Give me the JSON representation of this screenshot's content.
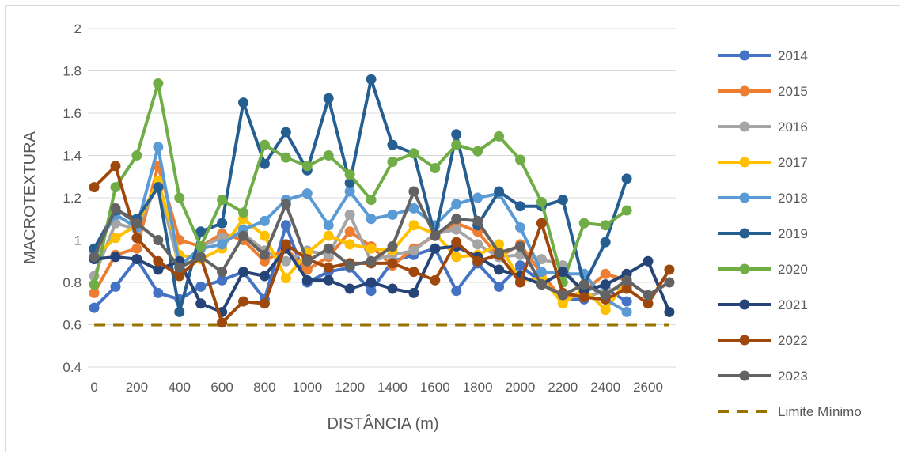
{
  "chart_data": {
    "type": "line",
    "title": "",
    "xlabel": "DISTÂNCIA (m)",
    "ylabel": "MACROTEXTURA",
    "x": [
      0,
      100,
      200,
      300,
      400,
      500,
      600,
      700,
      800,
      900,
      1000,
      1100,
      1200,
      1300,
      1400,
      1500,
      1600,
      1700,
      1800,
      1900,
      2000,
      2100,
      2200,
      2300,
      2400,
      2500,
      2600,
      2700
    ],
    "x_ticks": [
      "0",
      "200",
      "400",
      "600",
      "800",
      "1000",
      "1200",
      "1400",
      "1600",
      "1800",
      "2000",
      "2200",
      "2400",
      "2600"
    ],
    "x_tick_values": [
      0,
      200,
      400,
      600,
      800,
      1000,
      1200,
      1400,
      1600,
      1800,
      2000,
      2200,
      2400,
      2600
    ],
    "xlim": [
      -30,
      2730
    ],
    "y_ticks": [
      "0.4",
      "0.6",
      "0.8",
      "1",
      "1.2",
      "1.4",
      "1.6",
      "1.8",
      "2"
    ],
    "y_tick_values": [
      0.4,
      0.6,
      0.8,
      1,
      1.2,
      1.4,
      1.6,
      1.8,
      2
    ],
    "ylim": [
      0.4,
      2
    ],
    "grid": true,
    "legend_position": "right",
    "series": [
      {
        "name": "2014",
        "color": "#4472C4",
        "values": [
          0.68,
          0.78,
          0.91,
          0.75,
          0.72,
          0.78,
          0.81,
          0.85,
          0.72,
          1.07,
          0.8,
          0.85,
          0.87,
          0.76,
          0.9,
          0.93,
          0.96,
          0.76,
          0.89,
          0.78,
          0.88,
          0.8,
          0.72,
          0.72,
          0.77,
          0.71,
          null,
          null
        ]
      },
      {
        "name": "2015",
        "color": "#ED7D31",
        "values": [
          0.75,
          0.93,
          0.96,
          1.35,
          1.0,
          0.97,
          1.03,
          1.0,
          0.9,
          0.96,
          0.86,
          0.92,
          1.04,
          0.97,
          0.88,
          0.96,
          1.02,
          1.08,
          1.04,
          0.92,
          0.98,
          0.84,
          0.72,
          0.76,
          0.84,
          0.81,
          null,
          null
        ]
      },
      {
        "name": "2016",
        "color": "#A5A5A5",
        "values": [
          0.83,
          1.08,
          1.05,
          1.27,
          0.87,
          0.97,
          1.01,
          1.03,
          0.95,
          0.9,
          0.95,
          0.93,
          1.12,
          0.9,
          0.93,
          0.95,
          1.03,
          1.05,
          0.98,
          0.92,
          0.93,
          0.91,
          0.88,
          0.73,
          0.76,
          0.78,
          null,
          null
        ]
      },
      {
        "name": "2017",
        "color": "#FFC000",
        "values": [
          0.92,
          1.01,
          1.07,
          1.28,
          0.93,
          0.91,
          0.96,
          1.1,
          1.02,
          0.82,
          0.94,
          1.02,
          0.98,
          0.96,
          0.95,
          1.07,
          1.03,
          0.92,
          0.93,
          0.98,
          0.81,
          0.82,
          0.7,
          0.77,
          0.67,
          0.81,
          null,
          null
        ]
      },
      {
        "name": "2018",
        "color": "#5B9BD5",
        "values": [
          0.95,
          1.12,
          1.06,
          1.44,
          0.88,
          0.96,
          0.98,
          1.05,
          1.09,
          1.19,
          1.22,
          1.07,
          1.23,
          1.1,
          1.12,
          1.15,
          1.07,
          1.17,
          1.2,
          1.22,
          1.06,
          0.85,
          0.84,
          0.84,
          0.72,
          0.66,
          null,
          null
        ]
      },
      {
        "name": "2019",
        "color": "#255E91",
        "values": [
          0.96,
          1.14,
          1.1,
          1.25,
          0.66,
          1.04,
          1.08,
          1.65,
          1.36,
          1.51,
          1.33,
          1.67,
          1.27,
          1.76,
          1.45,
          1.41,
          1.02,
          1.5,
          1.07,
          1.23,
          1.16,
          1.16,
          1.19,
          0.79,
          0.99,
          1.29,
          null,
          null
        ]
      },
      {
        "name": "2020",
        "color": "#70AD47",
        "values": [
          0.79,
          1.25,
          1.4,
          1.74,
          1.2,
          0.97,
          1.19,
          1.13,
          1.45,
          1.39,
          1.35,
          1.4,
          1.31,
          1.19,
          1.37,
          1.41,
          1.34,
          1.45,
          1.42,
          1.49,
          1.38,
          1.18,
          0.8,
          1.08,
          1.07,
          1.14,
          null,
          null
        ]
      },
      {
        "name": "2021",
        "color": "#264478",
        "values": [
          0.91,
          0.92,
          0.91,
          0.86,
          0.9,
          0.7,
          0.66,
          0.85,
          0.83,
          0.96,
          0.81,
          0.81,
          0.77,
          0.8,
          0.77,
          0.75,
          0.96,
          0.97,
          0.92,
          0.86,
          0.83,
          0.79,
          0.85,
          0.76,
          0.79,
          0.84,
          0.9,
          0.66
        ]
      },
      {
        "name": "2022",
        "color": "#9E480E",
        "values": [
          1.25,
          1.35,
          1.01,
          0.9,
          0.83,
          0.92,
          0.61,
          0.71,
          0.7,
          0.98,
          0.91,
          0.87,
          0.89,
          0.89,
          0.89,
          0.85,
          0.81,
          0.99,
          0.9,
          0.93,
          0.8,
          1.08,
          0.75,
          0.73,
          0.72,
          0.77,
          0.7,
          0.86
        ]
      },
      {
        "name": "2023",
        "color": "#636363",
        "values": [
          0.92,
          1.15,
          1.08,
          1.0,
          0.87,
          0.92,
          0.85,
          1.02,
          0.93,
          1.17,
          0.9,
          0.96,
          0.88,
          0.9,
          0.97,
          1.23,
          1.02,
          1.1,
          1.09,
          0.94,
          0.97,
          0.79,
          0.74,
          0.79,
          0.74,
          0.81,
          0.74,
          0.8
        ]
      }
    ],
    "reference_line": {
      "name": "Limite Mínimo",
      "color": "#997300",
      "value": 0.6,
      "style": "dashed",
      "x_range": [
        0,
        2700
      ]
    }
  }
}
